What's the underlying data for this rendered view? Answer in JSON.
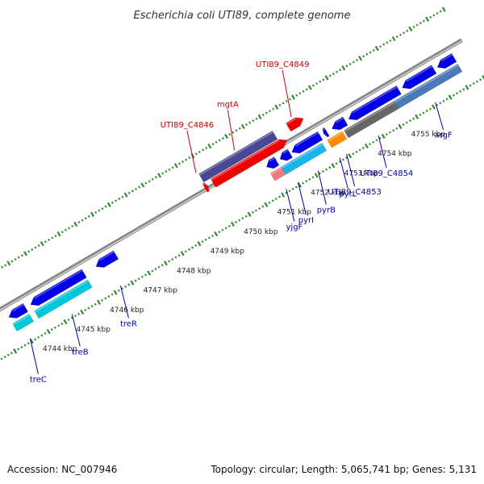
{
  "header": {
    "title": "Escherichia coli UTI89, complete genome"
  },
  "footer": {
    "accession": "Accession: NC_007946",
    "summary": "Topology: circular; Length: 5,065,741 bp; Genes: 5,131"
  },
  "colors": {
    "backbone": "#888888",
    "dots": "#2e8b2e",
    "forward_label": "#cc0000",
    "reverse_label": "#0000aa",
    "blue": "#0000e6",
    "cyan": "#00c8d8",
    "lightblue": "#19b4ec",
    "steelblue": "#4a7ab8",
    "purple": "#4a4895",
    "red": "#ee0000",
    "salmon": "#ee7a7a",
    "orange": "#ff8c00",
    "gray": "#666666"
  },
  "chart_data": {
    "type": "linear-genome-map",
    "units": "kbp",
    "axis_range": [
      4743.5,
      4755.6
    ],
    "tick_labels": [
      {
        "kbp": 4744,
        "label": "4744 kbp"
      },
      {
        "kbp": 4745,
        "label": "4745 kbp"
      },
      {
        "kbp": 4746,
        "label": "4746 kbp"
      },
      {
        "kbp": 4747,
        "label": "4747 kbp"
      },
      {
        "kbp": 4748,
        "label": "4748 kbp"
      },
      {
        "kbp": 4749,
        "label": "4749 kbp"
      },
      {
        "kbp": 4750,
        "label": "4750 kbp"
      },
      {
        "kbp": 4751,
        "label": "4751 kbp"
      },
      {
        "kbp": 4752,
        "label": "4752 kbp"
      },
      {
        "kbp": 4753,
        "label": "4753 kbp"
      },
      {
        "kbp": 4754,
        "label": "4754 kbp"
      },
      {
        "kbp": 4755,
        "label": "4755 kbp"
      }
    ],
    "forward_features": [
      {
        "start": 4749.35,
        "end": 4749.45,
        "color": "red",
        "arrow": true
      },
      {
        "start": 4749.6,
        "end": 4751.8,
        "color": "red",
        "arrow": true
      },
      {
        "start": 4749.4,
        "end": 4751.6,
        "color": "purple",
        "arrow": false
      },
      {
        "start": 4752.0,
        "end": 4752.45,
        "color": "red",
        "arrow": true
      }
    ],
    "reverse_features": [
      {
        "start": 4743.3,
        "end": 4743.8,
        "color": "blue",
        "lane": 1
      },
      {
        "start": 4743.3,
        "end": 4743.8,
        "color": "cyan",
        "lane": 2
      },
      {
        "start": 4743.95,
        "end": 4745.55,
        "color": "blue",
        "lane": 1
      },
      {
        "start": 4743.95,
        "end": 4745.55,
        "color": "cyan",
        "lane": 2
      },
      {
        "start": 4745.9,
        "end": 4746.5,
        "color": "blue",
        "lane": 1
      },
      {
        "start": 4751.0,
        "end": 4751.3,
        "color": "blue",
        "lane": 1
      },
      {
        "start": 4751.4,
        "end": 4751.7,
        "color": "blue",
        "lane": 1
      },
      {
        "start": 4751.75,
        "end": 4752.6,
        "color": "blue",
        "lane": 1
      },
      {
        "start": 4752.7,
        "end": 4752.8,
        "color": "blue",
        "lane": 1
      },
      {
        "start": 4752.95,
        "end": 4753.35,
        "color": "blue",
        "lane": 1
      },
      {
        "start": 4753.45,
        "end": 4754.95,
        "color": "blue",
        "lane": 1
      },
      {
        "start": 4755.05,
        "end": 4756.0,
        "color": "blue",
        "lane": 1
      },
      {
        "start": 4756.1,
        "end": 4756.6,
        "color": "blue",
        "lane": 1
      },
      {
        "start": 4751.0,
        "end": 4751.33,
        "color": "salmon",
        "lane": 2
      },
      {
        "start": 4751.33,
        "end": 4751.65,
        "color": "lightblue",
        "lane": 2
      },
      {
        "start": 4751.65,
        "end": 4752.55,
        "color": "lightblue",
        "lane": 2
      },
      {
        "start": 4752.7,
        "end": 4753.15,
        "color": "orange",
        "lane": 2
      },
      {
        "start": 4753.2,
        "end": 4754.7,
        "color": "gray",
        "lane": 2
      },
      {
        "start": 4754.7,
        "end": 4756.6,
        "color": "steelblue",
        "lane": 2
      }
    ],
    "forward_labels": [
      {
        "name": "UTI89_C4846",
        "kbp": 4749.35
      },
      {
        "name": "mgtA",
        "kbp": 4750.5
      },
      {
        "name": "UTI89_C4849",
        "kbp": 4752.2
      }
    ],
    "reverse_labels": [
      {
        "name": "treC",
        "kbp": 4743.5
      },
      {
        "name": "treB",
        "kbp": 4744.75
      },
      {
        "name": "treR",
        "kbp": 4746.2
      },
      {
        "name": "yjgF",
        "kbp": 4751.15
      },
      {
        "name": "pyrI",
        "kbp": 4751.5
      },
      {
        "name": "pyrB",
        "kbp": 4752.1
      },
      {
        "name": "pyrL",
        "kbp": 4752.75
      },
      {
        "name": "UTI89_C4853",
        "kbp": 4752.95
      },
      {
        "name": "UTI89_C4854",
        "kbp": 4753.9
      },
      {
        "name": "argF",
        "kbp": 4755.6
      }
    ]
  }
}
